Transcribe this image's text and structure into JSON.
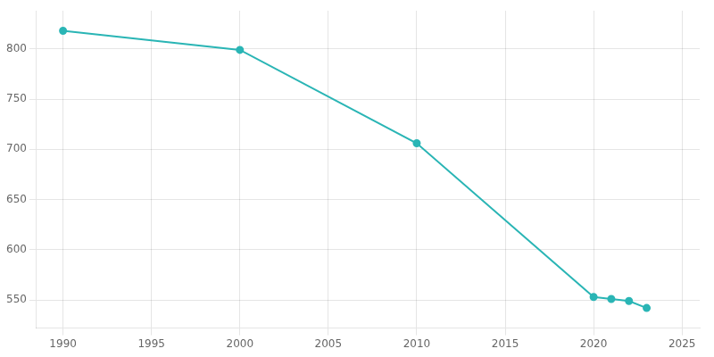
{
  "chart_data": {
    "type": "line",
    "x": [
      1990,
      2000,
      2010,
      2020,
      2021,
      2022,
      2023
    ],
    "values": [
      818,
      799,
      706,
      553,
      551,
      549,
      542
    ],
    "color": "#2ab5b5",
    "marker": "circle",
    "xlim": [
      1988.5,
      2026
    ],
    "ylim": [
      522,
      838
    ],
    "xticks": [
      1990,
      1995,
      2000,
      2005,
      2010,
      2015,
      2020,
      2025
    ],
    "yticks": [
      550,
      600,
      650,
      700,
      750,
      800
    ],
    "grid": true
  }
}
